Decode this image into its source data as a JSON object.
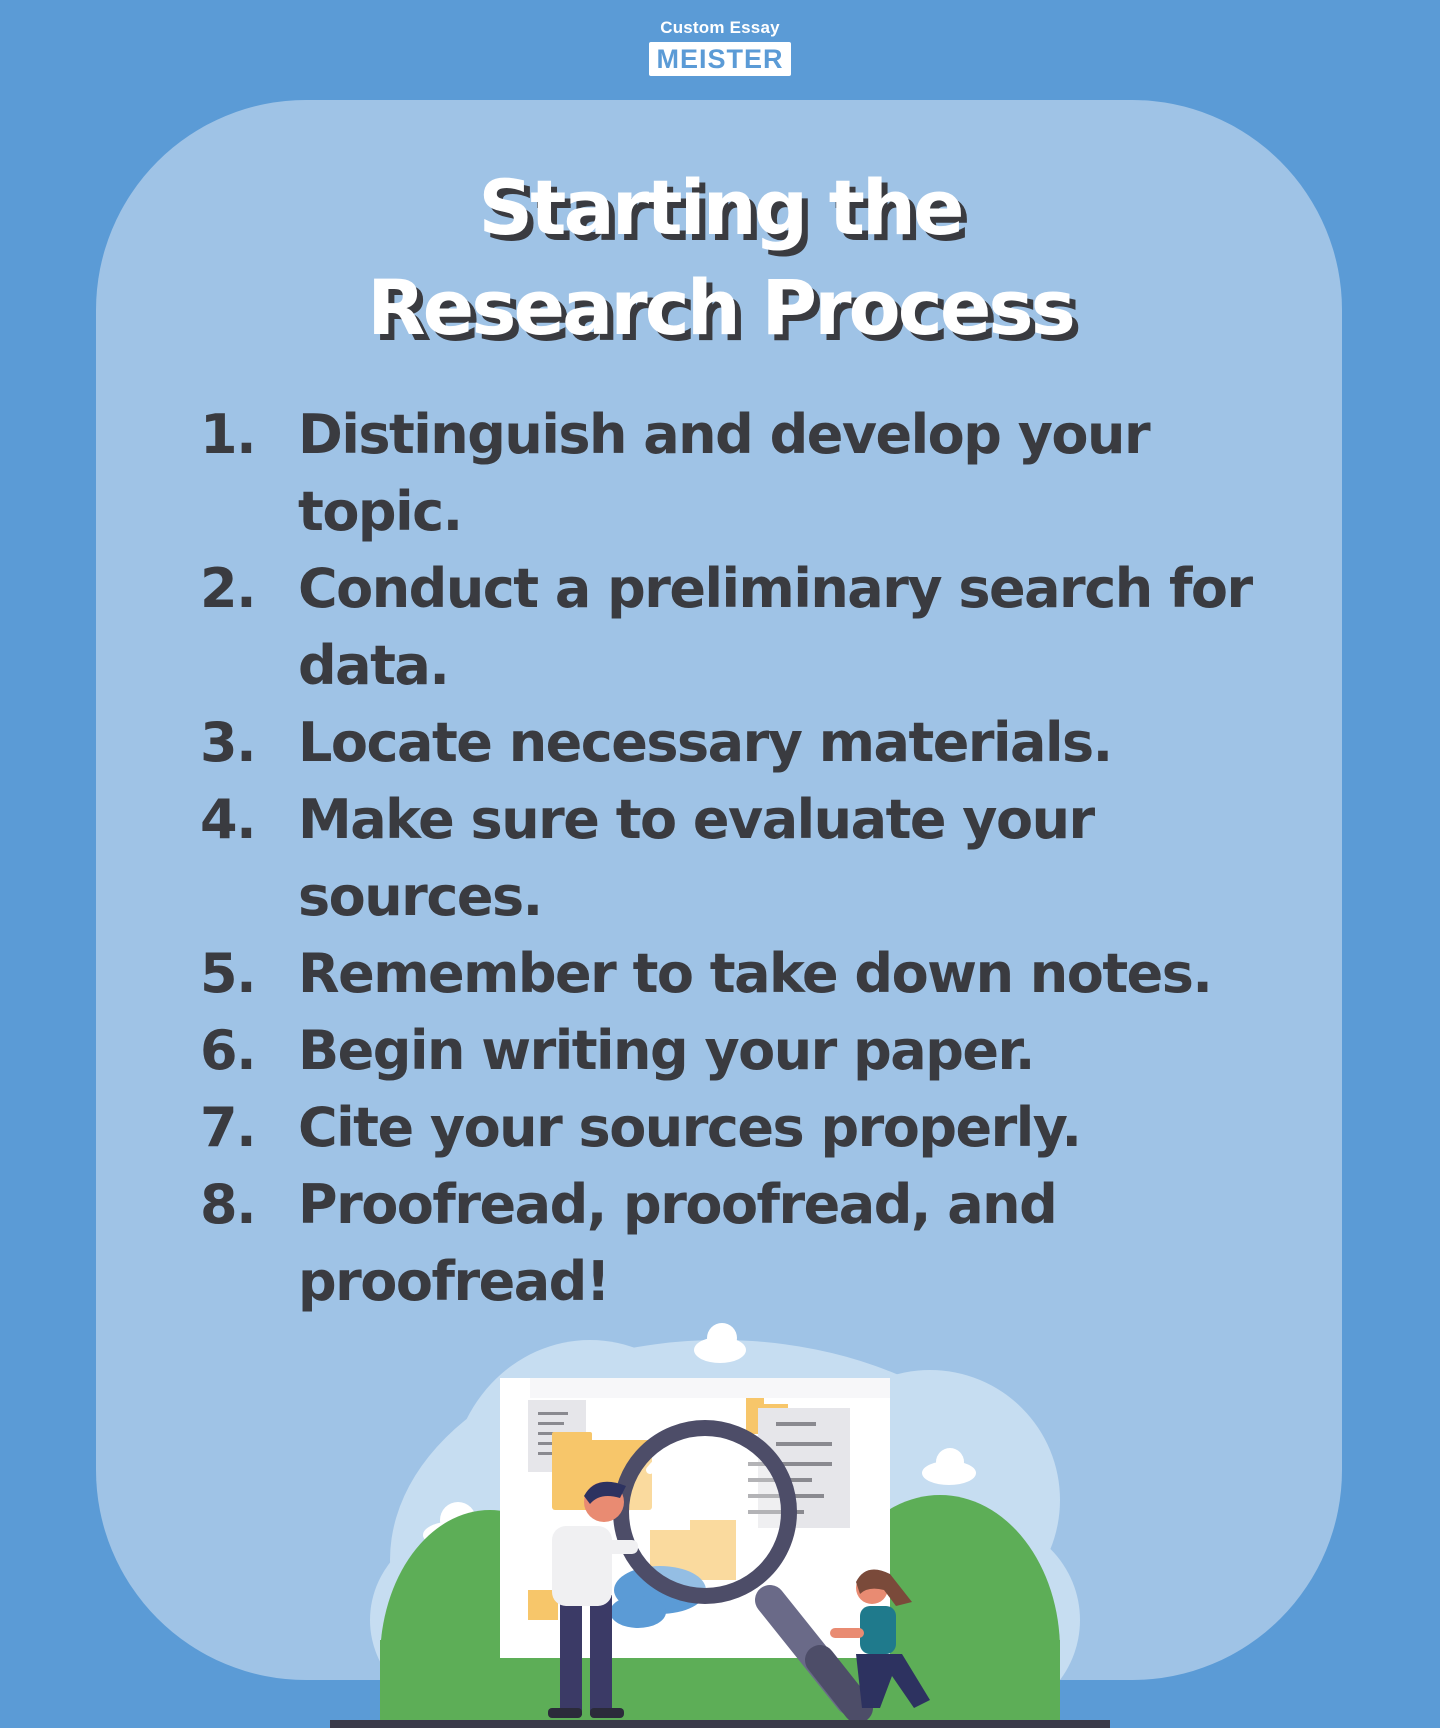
{
  "brand": {
    "line1": "Custom Essay",
    "line2": "MEISTER"
  },
  "title": {
    "line1": "Starting the",
    "line2": "Research Process"
  },
  "steps": [
    {
      "num": "1.",
      "text": "Distinguish and develop your topic."
    },
    {
      "num": "2.",
      "text": "Conduct a preliminary search for data."
    },
    {
      "num": "3.",
      "text": "Locate necessary materials."
    },
    {
      "num": "4.",
      "text": "Make sure to evaluate your sources."
    },
    {
      "num": "5.",
      "text": "Remember to take down notes."
    },
    {
      "num": "6.",
      "text": "Begin writing your paper."
    },
    {
      "num": "7.",
      "text": "Cite your sources properly."
    },
    {
      "num": "8.",
      "text": "Proofread, proofread, and proofread!"
    }
  ],
  "colors": {
    "background": "#5b9bd6",
    "panel": "#9fc3e6",
    "text_dark": "#3a3b40",
    "title": "#ffffff"
  }
}
